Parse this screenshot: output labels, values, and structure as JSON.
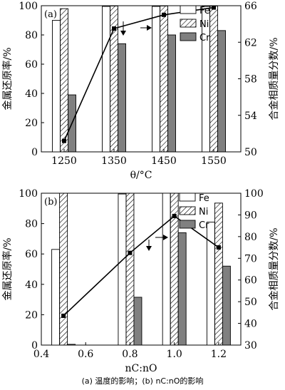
{
  "caption": "(a) 温度的影响；(b) nC:nO的影响",
  "chart_data": [
    {
      "type": "bar",
      "panel_label": "(a)",
      "xlabel": "θ/°C",
      "ylabel": "金属还原率/%",
      "y2label": "合金相质量分数/%",
      "categories": [
        1250,
        1350,
        1450,
        1550
      ],
      "ylim": [
        0,
        100
      ],
      "yticks": [
        0,
        20,
        40,
        60,
        80,
        100
      ],
      "y2lim": [
        50,
        66
      ],
      "y2ticks": [
        50,
        54,
        58,
        62,
        66
      ],
      "xticks": [
        "1250",
        "1350",
        "1450",
        "1550"
      ],
      "legend_position": "top",
      "series": [
        {
          "name": "Fe",
          "values": [
            90,
            99.5,
            99.5,
            99.5
          ],
          "pattern": "white",
          "color": "#ffffff"
        },
        {
          "name": "Ni",
          "values": [
            98,
            99.8,
            99.8,
            99.8
          ],
          "pattern": "hatch",
          "color": "#ffffff"
        },
        {
          "name": "Cr",
          "values": [
            39,
            74,
            80,
            83
          ],
          "pattern": "gray",
          "color": "#808080"
        }
      ],
      "line": {
        "axis": "right",
        "x": [
          1250,
          1350,
          1450,
          1550
        ],
        "values": [
          51.2,
          63.5,
          65.0,
          65.8
        ]
      }
    },
    {
      "type": "bar",
      "panel_label": "(b)",
      "xlabel": "nC:nO",
      "ylabel": "金属还原率/%",
      "y2label": "合金相质量分数/%",
      "categories": [
        0.5,
        0.8,
        1.0,
        1.2
      ],
      "xlim": [
        0.4,
        1.3
      ],
      "xticks": [
        "0.4",
        "0.6",
        "0.8",
        "1.0",
        "1.2"
      ],
      "ylim": [
        0,
        100
      ],
      "yticks": [
        0,
        20,
        40,
        60,
        80,
        100
      ],
      "y2lim": [
        30,
        100
      ],
      "y2ticks": [
        30,
        40,
        50,
        60,
        70,
        80,
        90,
        100
      ],
      "legend_position": "top",
      "series": [
        {
          "name": "Fe",
          "values": [
            63,
            99.5,
            100,
            81
          ],
          "pattern": "white",
          "color": "#ffffff"
        },
        {
          "name": "Ni",
          "values": [
            100,
            100,
            100,
            93.5
          ],
          "pattern": "hatch",
          "color": "#ffffff"
        },
        {
          "name": "Cr",
          "values": [
            0.5,
            31.5,
            74,
            52
          ],
          "pattern": "gray",
          "color": "#808080"
        }
      ],
      "line": {
        "axis": "right",
        "x": [
          0.5,
          0.8,
          1.0,
          1.2
        ],
        "values": [
          43.5,
          72.5,
          89.5,
          75
        ]
      }
    }
  ]
}
